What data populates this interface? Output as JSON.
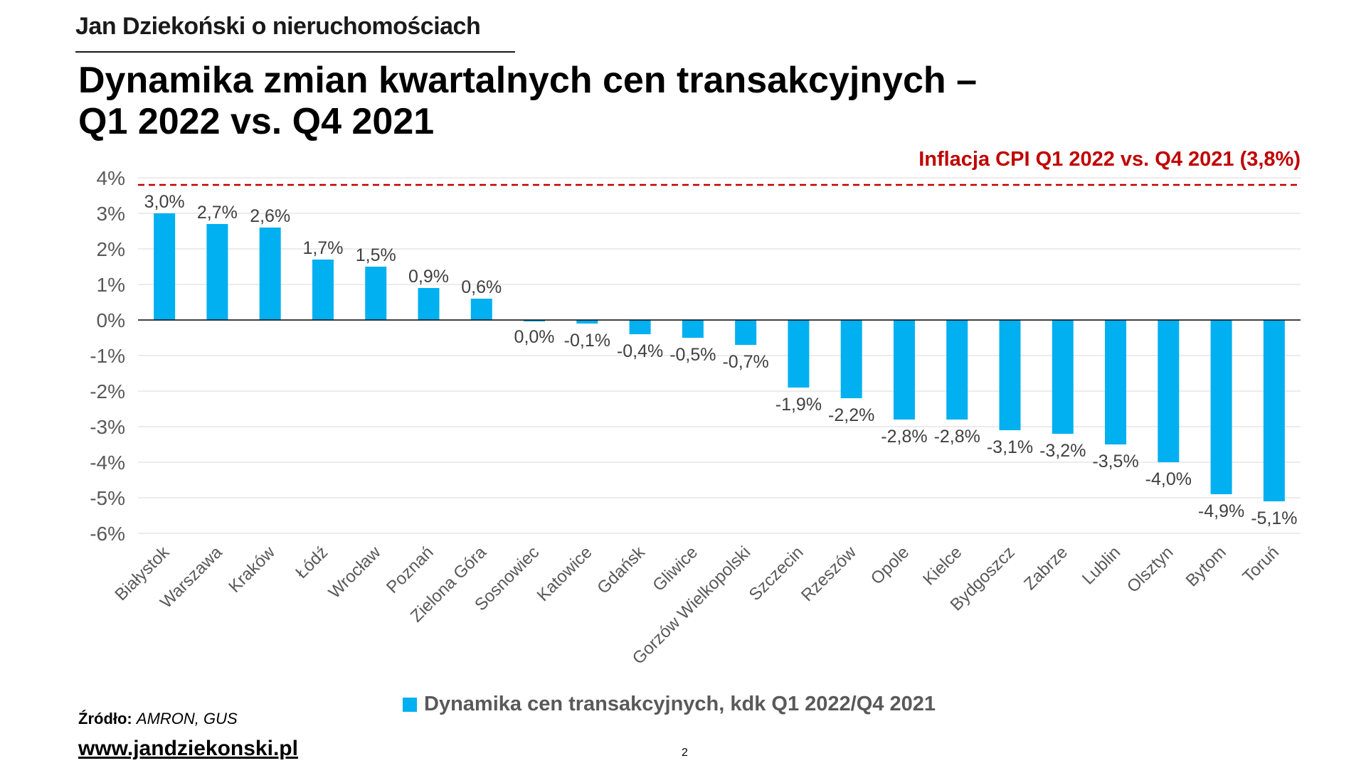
{
  "header": {
    "brand": "Jan Dziekoński o nieruchomościach",
    "title_line1": "Dynamika zmian kwartalnych cen transakcyjnych –",
    "title_line2": "Q1 2022 vs. Q4 2021"
  },
  "chart_data": {
    "type": "bar",
    "categories": [
      "Białystok",
      "Warszawa",
      "Kraków",
      "Łódź",
      "Wrocław",
      "Poznań",
      "Zielona Góra",
      "Sosnowiec",
      "Katowice",
      "Gdańsk",
      "Gliwice",
      "Gorzów Wielkopolski",
      "Szczecin",
      "Rzeszów",
      "Opole",
      "Kielce",
      "Bydgoszcz",
      "Zabrze",
      "Lublin",
      "Olsztyn",
      "Bytom",
      "Toruń"
    ],
    "values": [
      3.0,
      2.7,
      2.6,
      1.7,
      1.5,
      0.9,
      0.6,
      0.0,
      -0.1,
      -0.4,
      -0.5,
      -0.7,
      -1.9,
      -2.2,
      -2.8,
      -2.8,
      -3.1,
      -3.2,
      -3.5,
      -4.0,
      -4.9,
      -5.1
    ],
    "data_labels": [
      "3,0%",
      "2,7%",
      "2,6%",
      "1,7%",
      "1,5%",
      "0,9%",
      "0,6%",
      "0,0%",
      "-0,1%",
      "-0,4%",
      "-0,5%",
      "-0,7%",
      "-1,9%",
      "-2,2%",
      "-2,8%",
      "-2,8%",
      "-3,1%",
      "-3,2%",
      "-3,5%",
      "-4,0%",
      "-4,9%",
      "-5,1%"
    ],
    "series": [
      {
        "name": "Dynamika cen transakcyjnych, kdk Q1 2022/Q4 2021",
        "color": "#00b0f0"
      }
    ],
    "ylim": [
      -6,
      4
    ],
    "yticks": [
      4,
      3,
      2,
      1,
      0,
      -1,
      -2,
      -3,
      -4,
      -5,
      -6
    ],
    "ytick_labels": [
      "4%",
      "3%",
      "2%",
      "1%",
      "0%",
      "-1%",
      "-2%",
      "-3%",
      "-4%",
      "-5%",
      "-6%"
    ],
    "grid": true,
    "legend_position": "bottom",
    "reference_line": {
      "value": 3.8,
      "label": "Inflacja CPI Q1 2022 vs. Q4 2021 (3,8%)",
      "style": "dashed",
      "color": "#c00000"
    }
  },
  "footer": {
    "source_label": "Źródło:",
    "source_value": "AMRON, GUS",
    "website": "www.jandziekonski.pl",
    "page_number": "2"
  }
}
